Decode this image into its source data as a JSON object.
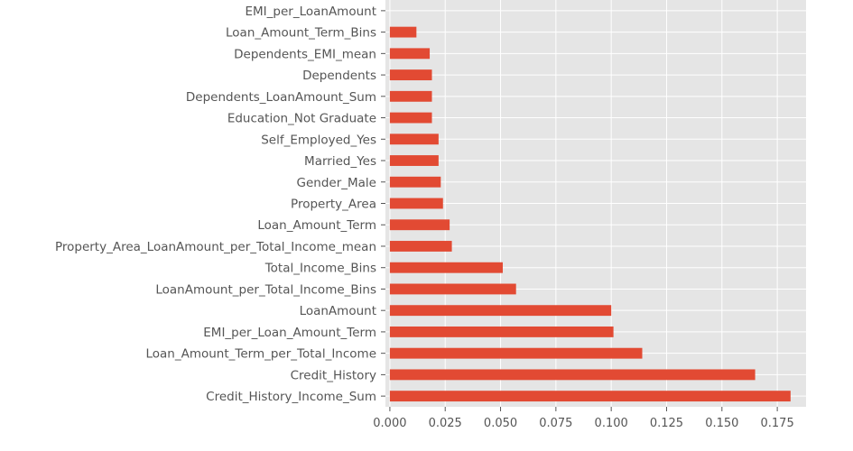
{
  "chart_data": {
    "type": "bar",
    "orientation": "horizontal",
    "categories": [
      "Credit_History_Income_Sum",
      "Credit_History",
      "Loan_Amount_Term_per_Total_Income",
      "EMI_per_Loan_Amount_Term",
      "LoanAmount",
      "LoanAmount_per_Total_Income_Bins",
      "Total_Income_Bins",
      "Property_Area_LoanAmount_per_Total_Income_mean",
      "Loan_Amount_Term",
      "Property_Area",
      "Gender_Male",
      "Married_Yes",
      "Self_Employed_Yes",
      "Education_Not Graduate",
      "Dependents_LoanAmount_Sum",
      "Dependents",
      "Dependents_EMI_mean",
      "Loan_Amount_Term_Bins",
      "EMI_per_LoanAmount"
    ],
    "values": [
      0.181,
      0.165,
      0.114,
      0.101,
      0.1,
      0.057,
      0.051,
      0.028,
      0.027,
      0.024,
      0.023,
      0.022,
      0.022,
      0.019,
      0.019,
      0.019,
      0.018,
      0.012,
      0.0
    ],
    "xlim": [
      -0.002,
      0.188
    ],
    "xticks": [
      "0.000",
      "0.025",
      "0.050",
      "0.075",
      "0.100",
      "0.125",
      "0.150",
      "0.175"
    ],
    "xtick_values": [
      0.0,
      0.025,
      0.05,
      0.075,
      0.1,
      0.125,
      0.15,
      0.175
    ],
    "grid": true,
    "style": "ggplot",
    "colors": {
      "bar": "#e24a33",
      "background": "#e5e5e5",
      "grid": "#ffffff",
      "text": "#555555"
    }
  }
}
